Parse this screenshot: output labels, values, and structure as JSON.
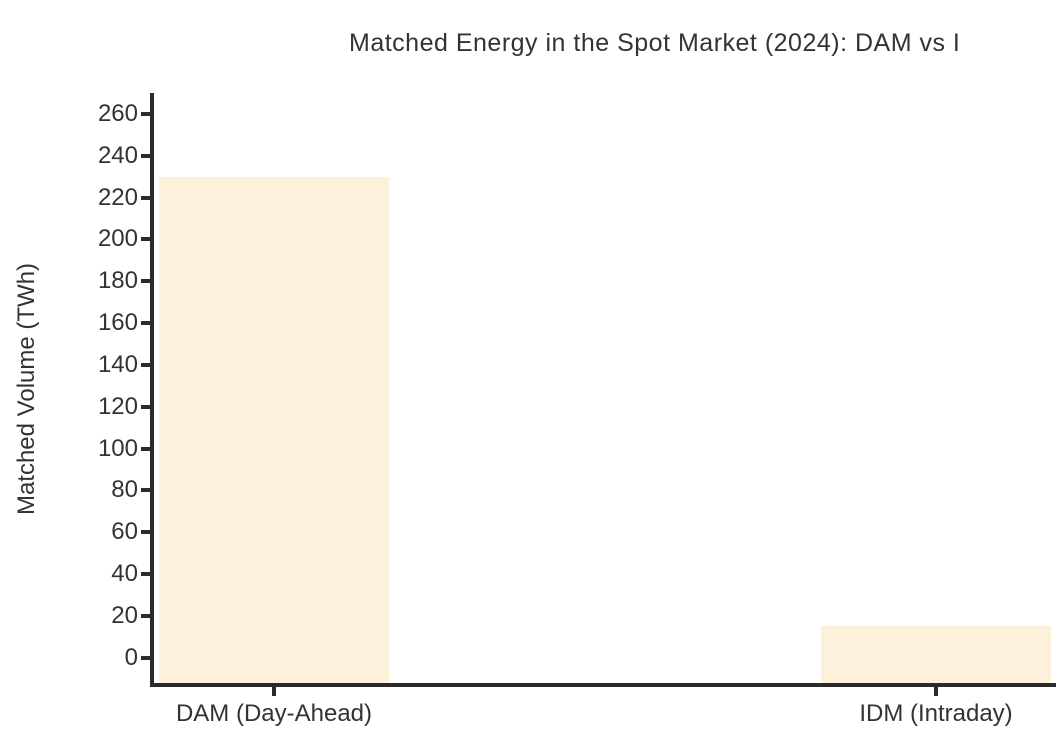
{
  "chart_data": {
    "type": "bar",
    "title": "Matched Energy in the Spot Market (2024): DAM vs I",
    "xlabel": "",
    "ylabel": "Matched Volume (TWh)",
    "categories": [
      "DAM (Day-Ahead)",
      "IDM (Intraday)"
    ],
    "values": [
      230,
      15
    ],
    "unit": "TWh",
    "yticks": [
      0,
      20,
      40,
      60,
      80,
      100,
      120,
      140,
      160,
      180,
      200,
      220,
      240,
      260
    ],
    "ylim": [
      -13,
      270
    ],
    "grid": false,
    "legend": false,
    "bars_baseline": "axis-bottom",
    "title_clipped_at_right_edge": true,
    "colors": {
      "bar_fill": "#FDF1DC",
      "axis": "#2B2B2B",
      "text": "#333333",
      "background": "#FFFFFF"
    }
  }
}
